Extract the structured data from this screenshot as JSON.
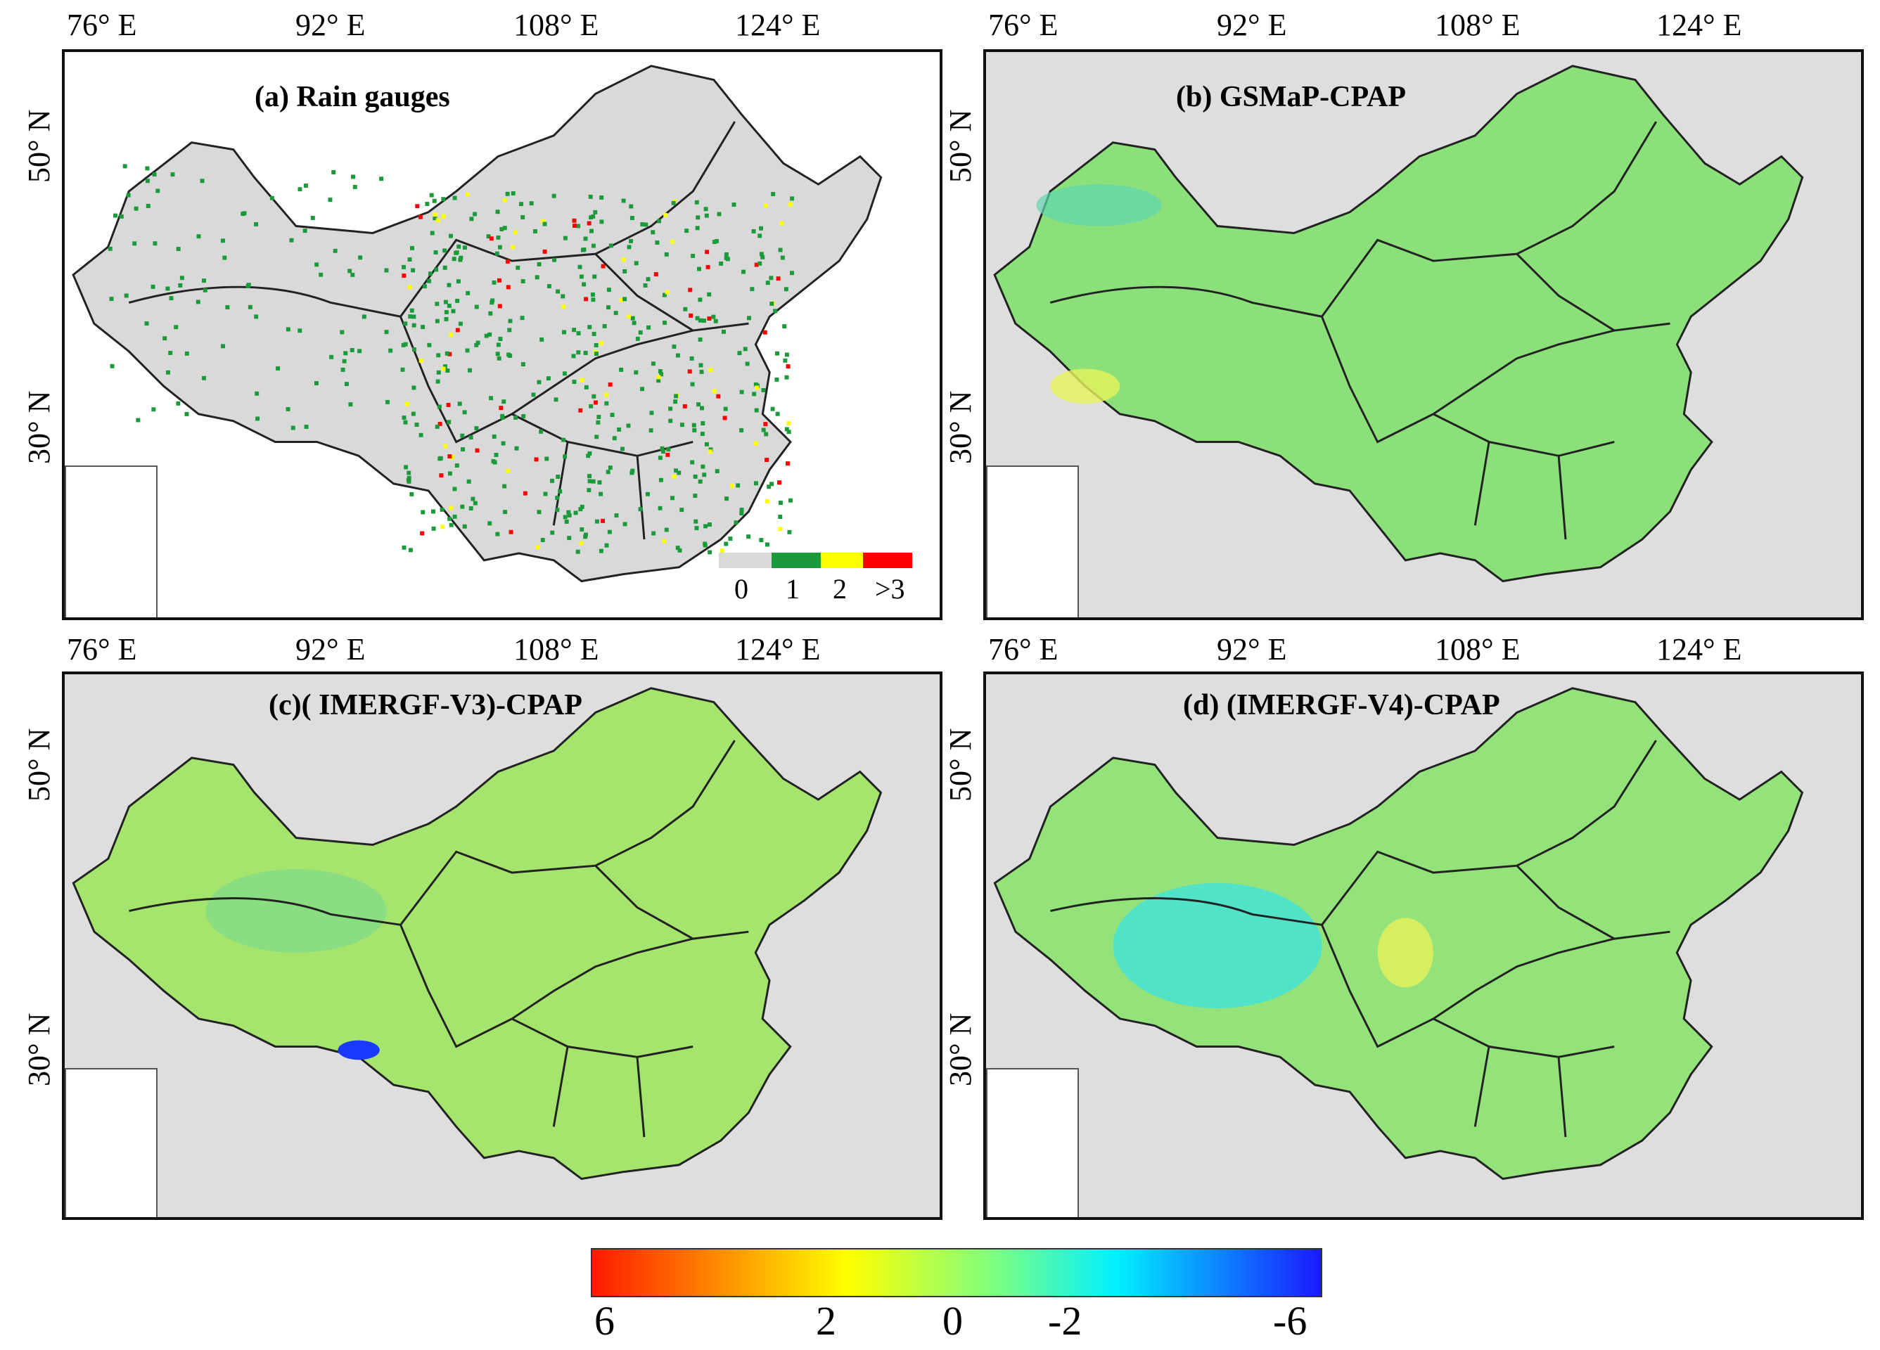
{
  "panels": [
    {
      "id": "a",
      "title": "(a) Rain gauges"
    },
    {
      "id": "b",
      "title": "(b) GSMaP-CPAP"
    },
    {
      "id": "c",
      "title": "(c)( IMERGF-V3)-CPAP"
    },
    {
      "id": "d",
      "title": "(d) (IMERGF-V4)-CPAP"
    }
  ],
  "axes": {
    "lon_labels": [
      "76° E",
      "92° E",
      "108° E",
      "124° E"
    ],
    "lat_labels": [
      "50° N",
      "30° N"
    ]
  },
  "gauge_legend": {
    "labels": [
      "0",
      "1",
      "2",
      ">3"
    ],
    "colors": [
      "#d9d9d9",
      "#1a9a3a",
      "#ffff00",
      "#ff0000"
    ]
  },
  "colorbar": {
    "labels": [
      "6",
      "2",
      "0",
      "-2",
      "-6"
    ],
    "colors": [
      "#ff1a00",
      "#ffff00",
      "#7fff7f",
      "#00f0ff",
      "#1a1aff"
    ]
  },
  "colors": {
    "land_gauge": "#d9d9d9",
    "land_field": "#8be07a",
    "ocean_bg": "#dedede",
    "boundary": "#222222"
  }
}
